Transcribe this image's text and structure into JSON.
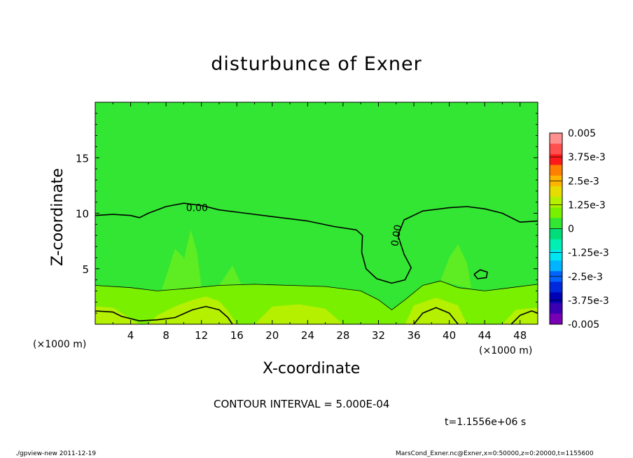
{
  "title": "disturbunce of Exner",
  "footer": {
    "left": "./gpview-new  2011-12-19",
    "right": "MarsCond_Exner.nc@Exner,x=0:50000,z=0:20000,t=1155600"
  },
  "contour_interval_text": "CONTOUR INTERVAL = 5.000E-04",
  "time_text": "t=1.1556e+06 s",
  "chart_data": {
    "type": "heatmap",
    "title": "disturbunce of Exner",
    "xlabel": "X-coordinate",
    "ylabel": "Z-coordinate",
    "x_unit_label": "(×1000 m)",
    "xlim": [
      0,
      50
    ],
    "ylim": [
      0,
      20
    ],
    "x_ticks": [
      "4",
      "8",
      "12",
      "16",
      "20",
      "24",
      "28",
      "32",
      "36",
      "40",
      "44",
      "48"
    ],
    "y_ticks": [
      "5",
      "10",
      "15"
    ],
    "colorbar": {
      "labels": [
        "0.005",
        "3.75e-3",
        "2.5e-3",
        "1.25e-3",
        "0",
        "-1.25e-3",
        "-2.5e-3",
        "-3.75e-3",
        "-0.005"
      ],
      "colors": [
        "#ff9090",
        "#ff5050",
        "#ff1a1a",
        "#ff7f00",
        "#ffb400",
        "#e6dc00",
        "#b4f000",
        "#78f000",
        "#33e633",
        "#00dc78",
        "#00f0b4",
        "#00e6f0",
        "#00b4ff",
        "#0064ff",
        "#0028dc",
        "#0000b4",
        "#3c00b4",
        "#7800b4"
      ]
    },
    "contour_labels": [
      {
        "text": "0.00",
        "x": 11.5,
        "z": 10.5
      },
      {
        "text": "0.00",
        "x": 34.0,
        "z": 8.0
      }
    ],
    "regions": [
      {
        "name": "near-zero upper field",
        "color": "#33e633"
      },
      {
        "name": "slightly positive layer",
        "color": "#78f000"
      },
      {
        "name": "positive surface layer",
        "color": "#b4f000"
      }
    ],
    "contours": [
      {
        "level": "0.00",
        "points": [
          [
            0,
            9.8
          ],
          [
            2,
            9.9
          ],
          [
            4,
            9.8
          ],
          [
            5,
            9.6
          ],
          [
            6,
            10.0
          ],
          [
            8,
            10.6
          ],
          [
            10,
            10.9
          ],
          [
            12,
            10.7
          ],
          [
            14,
            10.3
          ],
          [
            17,
            10.0
          ],
          [
            20,
            9.7
          ],
          [
            24,
            9.3
          ],
          [
            27,
            8.8
          ],
          [
            29.5,
            8.5
          ],
          [
            30.2,
            8.0
          ],
          [
            30.1,
            6.5
          ],
          [
            30.6,
            5.0
          ],
          [
            31.8,
            4.1
          ],
          [
            33.5,
            3.7
          ],
          [
            35.0,
            4.0
          ],
          [
            35.7,
            5.1
          ],
          [
            34.9,
            6.3
          ],
          [
            34.2,
            8.0
          ],
          [
            34.9,
            9.4
          ],
          [
            37,
            10.2
          ],
          [
            40,
            10.5
          ],
          [
            42,
            10.6
          ],
          [
            44,
            10.4
          ],
          [
            46,
            10.0
          ],
          [
            48,
            9.2
          ],
          [
            50,
            9.3
          ]
        ]
      },
      {
        "level": "0.00",
        "points": [
          [
            42.8,
            4.5
          ],
          [
            43.5,
            4.9
          ],
          [
            44.3,
            4.7
          ],
          [
            44.2,
            4.2
          ],
          [
            43.2,
            4.1
          ],
          [
            42.8,
            4.5
          ]
        ]
      },
      {
        "level": "0.0005",
        "points": [
          [
            0,
            3.5
          ],
          [
            4,
            3.3
          ],
          [
            7,
            3.0
          ],
          [
            10,
            3.2
          ],
          [
            14,
            3.5
          ],
          [
            18,
            3.6
          ],
          [
            22,
            3.5
          ],
          [
            26,
            3.4
          ],
          [
            30,
            3.0
          ],
          [
            32,
            2.2
          ],
          [
            33.5,
            1.3
          ],
          [
            35,
            2.2
          ],
          [
            37,
            3.5
          ],
          [
            39,
            3.9
          ],
          [
            41,
            3.3
          ],
          [
            44,
            3.0
          ],
          [
            47,
            3.3
          ],
          [
            50,
            3.6
          ]
        ]
      },
      {
        "level": "0.0010",
        "points": [
          [
            0,
            1.2
          ],
          [
            2,
            1.1
          ],
          [
            3,
            0.7
          ],
          [
            5,
            0.3
          ],
          [
            7,
            0.4
          ],
          [
            9,
            0.6
          ],
          [
            11,
            1.3
          ],
          [
            12.5,
            1.6
          ],
          [
            14,
            1.3
          ],
          [
            15,
            0.6
          ],
          [
            15.5,
            0.0
          ]
        ]
      },
      {
        "level": "0.0010",
        "points": [
          [
            36,
            0.0
          ],
          [
            37,
            1.0
          ],
          [
            38.5,
            1.5
          ],
          [
            40,
            1.0
          ],
          [
            41,
            0.0
          ]
        ]
      },
      {
        "level": "0.0010",
        "points": [
          [
            47,
            0.0
          ],
          [
            48,
            0.8
          ],
          [
            49.3,
            1.2
          ],
          [
            50,
            1.0
          ]
        ]
      }
    ]
  }
}
